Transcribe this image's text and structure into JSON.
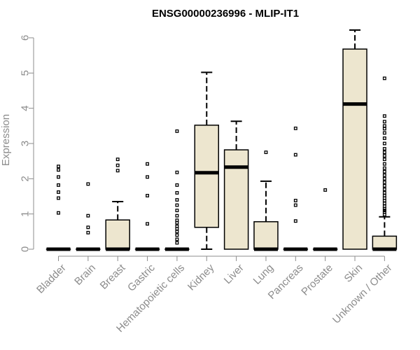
{
  "chart_data": {
    "type": "boxplot",
    "title": "ENSG00000236996 - MLIP-IT1",
    "xlabel": "",
    "ylabel": "Expression",
    "ylim": [
      0,
      6.3
    ],
    "yticks": [
      0,
      1,
      2,
      3,
      4,
      5,
      6
    ],
    "box_fill": "#ede6cf",
    "categories": [
      "Bladder",
      "Brain",
      "Breast",
      "Gastric",
      "Hematopoietic cells",
      "Kidney",
      "Liver",
      "Lung",
      "Pancreas",
      "Prostate",
      "Skin",
      "Unknown / Other"
    ],
    "boxes": [
      {
        "category": "Bladder",
        "q1": 0,
        "median": 0,
        "q3": 0,
        "whisker_low": 0,
        "whisker_high": 0,
        "outliers": [
          1.03,
          1.45,
          1.62,
          1.82,
          2.05,
          2.25,
          2.35
        ]
      },
      {
        "category": "Brain",
        "q1": 0,
        "median": 0,
        "q3": 0,
        "whisker_low": 0,
        "whisker_high": 0,
        "outliers": [
          0.47,
          0.62,
          0.95,
          1.85
        ]
      },
      {
        "category": "Breast",
        "q1": 0,
        "median": 0,
        "q3": 0.83,
        "whisker_low": 0,
        "whisker_high": 1.35,
        "outliers": [
          2.23,
          2.38,
          2.55
        ]
      },
      {
        "category": "Gastric",
        "q1": 0,
        "median": 0,
        "q3": 0,
        "whisker_low": 0,
        "whisker_high": 0,
        "outliers": [
          0.72,
          1.52,
          2.05,
          2.42
        ]
      },
      {
        "category": "Hematopoietic cells",
        "q1": 0,
        "median": 0,
        "q3": 0,
        "whisker_low": 0,
        "whisker_high": 0,
        "outliers": [
          0.18,
          0.28,
          0.4,
          0.5,
          0.58,
          0.65,
          0.75,
          0.82,
          0.95,
          1.1,
          1.25,
          1.4,
          1.6,
          1.82,
          2.18,
          3.35
        ]
      },
      {
        "category": "Kidney",
        "q1": 0.62,
        "median": 2.17,
        "q3": 3.52,
        "whisker_low": 0,
        "whisker_high": 5.02,
        "outliers": []
      },
      {
        "category": "Liver",
        "q1": 0,
        "median": 2.33,
        "q3": 2.82,
        "whisker_low": 0,
        "whisker_high": 3.63,
        "outliers": []
      },
      {
        "category": "Lung",
        "q1": 0,
        "median": 0,
        "q3": 0.78,
        "whisker_low": 0,
        "whisker_high": 1.93,
        "outliers": [
          2.75
        ]
      },
      {
        "category": "Pancreas",
        "q1": 0,
        "median": 0,
        "q3": 0,
        "whisker_low": 0,
        "whisker_high": 0,
        "outliers": [
          0.8,
          1.25,
          1.38,
          2.68,
          3.43
        ]
      },
      {
        "category": "Prostate",
        "q1": 0,
        "median": 0,
        "q3": 0,
        "whisker_low": 0,
        "whisker_high": 0,
        "outliers": [
          1.68
        ]
      },
      {
        "category": "Skin",
        "q1": 0,
        "median": 4.12,
        "q3": 5.68,
        "whisker_low": 0,
        "whisker_high": 6.22,
        "outliers": []
      },
      {
        "category": "Unknown / Other",
        "q1": 0,
        "median": 0,
        "q3": 0.37,
        "whisker_low": 0,
        "whisker_high": 0.92,
        "outliers": [
          0.98,
          1.05,
          1.1,
          1.15,
          1.22,
          1.3,
          1.38,
          1.45,
          1.52,
          1.6,
          1.7,
          1.8,
          1.9,
          2.0,
          2.1,
          2.2,
          2.3,
          2.42,
          2.55,
          2.65,
          2.75,
          2.85,
          3.0,
          3.15,
          3.3,
          3.42,
          3.5,
          3.62,
          3.78,
          4.85
        ]
      }
    ]
  }
}
